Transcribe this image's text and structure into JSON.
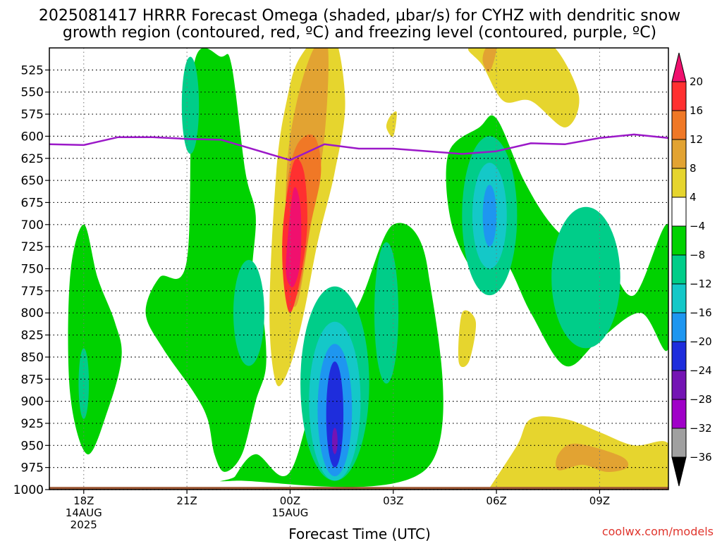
{
  "chart_data": {
    "type": "heatmap",
    "title_line1": "2025081417 HRRR Forecast Omega (shaded, µbar/s) for CYHZ with dendritic snow",
    "title_line2": "growth region (contoured, red, ºC) and freezing level (contoured, purple, ºC)",
    "xlabel": "Forecast Time (UTC)",
    "credit": "coolwx.com/models",
    "y_ticks": [
      525,
      550,
      575,
      600,
      625,
      650,
      675,
      700,
      725,
      750,
      775,
      800,
      825,
      850,
      875,
      900,
      925,
      950,
      975,
      1000
    ],
    "y_range_hpa": [
      500,
      1000
    ],
    "x_ticks": [
      {
        "hour": 18,
        "label": "18Z",
        "sub1": "14AUG",
        "sub2": "2025"
      },
      {
        "hour": 21,
        "label": "21Z",
        "sub1": "",
        "sub2": ""
      },
      {
        "hour": 24,
        "label": "00Z",
        "sub1": "15AUG",
        "sub2": ""
      },
      {
        "hour": 27,
        "label": "03Z",
        "sub1": "",
        "sub2": ""
      },
      {
        "hour": 30,
        "label": "06Z",
        "sub1": "",
        "sub2": ""
      },
      {
        "hour": 33,
        "label": "09Z",
        "sub1": "",
        "sub2": ""
      }
    ],
    "x_range_hours": [
      17,
      35
    ],
    "grid": true,
    "colorbar": {
      "labels": [
        "20",
        "16",
        "12",
        "8",
        "4",
        "−4",
        "−8",
        "−12",
        "−16",
        "−20",
        "−24",
        "−28",
        "−32",
        "−36"
      ],
      "colors": [
        "#f0106e",
        "#ff3030",
        "#f07826",
        "#e2a332",
        "#e6d52e",
        "#ffffff",
        "#00d200",
        "#00cd89",
        "#14c8c8",
        "#1e96f0",
        "#1e2ddc",
        "#7414b4",
        "#a000c8",
        "#a0a0a0",
        "#000000"
      ]
    },
    "terrain_color": "#9b5633",
    "freezing_level": {
      "color": "#9b18c8",
      "hours": [
        17,
        18,
        19,
        20,
        21,
        22,
        24,
        25,
        26,
        27,
        28,
        29,
        30,
        31,
        32,
        33,
        34,
        35
      ],
      "hpa": [
        609,
        610,
        601,
        601,
        603,
        604,
        627,
        609,
        614,
        614,
        617,
        620,
        617,
        608,
        609,
        602,
        598,
        602
      ]
    },
    "omega_regions": [
      {
        "level": 4,
        "color": "#e6d52e",
        "hours": [
          23.6,
          23.9,
          24.3,
          25.2,
          25.6,
          25.3,
          24.8,
          24.4,
          24.0,
          23.6,
          23.4
        ],
        "hpa": [
          640,
          560,
          510,
          480,
          560,
          640,
          720,
          800,
          860,
          880,
          800
        ]
      },
      {
        "level": 8,
        "color": "#e2a332",
        "hours": [
          23.9,
          24.2,
          24.7,
          25.1,
          25.0,
          24.6,
          24.2,
          23.9
        ],
        "hpa": [
          640,
          560,
          500,
          500,
          600,
          700,
          790,
          760
        ]
      },
      {
        "level": 12,
        "color": "#f07826",
        "hours": [
          23.9,
          24.2,
          24.7,
          24.9,
          24.6,
          24.2,
          23.9
        ],
        "hpa": [
          660,
          610,
          600,
          640,
          700,
          780,
          740
        ]
      },
      {
        "level": 16,
        "color": "#ff3030",
        "hours": [
          23.8,
          24.1,
          24.4,
          24.5,
          24.3,
          24.0,
          23.8
        ],
        "hpa": [
          700,
          630,
          640,
          700,
          760,
          800,
          760
        ]
      },
      {
        "level": 20,
        "color": "#f0106e",
        "hours": [
          23.9,
          24.1,
          24.3,
          24.3,
          24.1,
          23.9
        ],
        "hpa": [
          730,
          660,
          680,
          740,
          770,
          760
        ]
      },
      {
        "level": 4,
        "color": "#e6d52e",
        "hours": [
          29.2,
          30.3,
          31.0,
          31.7,
          32.4,
          32.0,
          31.0,
          30.2,
          29.6
        ],
        "hpa": [
          500,
          500,
          500,
          500,
          555,
          590,
          560,
          560,
          520
        ]
      },
      {
        "level": 8,
        "color": "#e2a332",
        "hours": [
          29.7,
          30.0,
          29.8,
          29.6
        ],
        "hpa": [
          500,
          500,
          527,
          515
        ]
      },
      {
        "level": 4,
        "color": "#e6d52e",
        "hours": [
          29.0,
          29.4,
          29.2,
          28.9
        ],
        "hpa": [
          800,
          810,
          855,
          855
        ]
      },
      {
        "level": 4,
        "color": "#e6d52e",
        "hours": [
          29.8,
          30.6,
          31.0,
          32.0,
          33.0,
          34.0,
          35.0,
          35.0,
          30.0,
          29.8
        ],
        "hpa": [
          998,
          950,
          920,
          920,
          935,
          950,
          948,
          1000,
          1000,
          998
        ]
      },
      {
        "level": 8,
        "color": "#e2a332",
        "hours": [
          31.8,
          32.3,
          33.6,
          33.8,
          33.2,
          32.5,
          31.8
        ],
        "hpa": [
          960,
          948,
          962,
          975,
          980,
          972,
          978
        ]
      },
      {
        "level": 4,
        "color": "#e6d52e",
        "hours": [
          26.9,
          27.1,
          27.0,
          26.8
        ],
        "hpa": [
          578,
          573,
          600,
          590
        ]
      },
      {
        "level": -4,
        "color": "#00d200",
        "hours": [
          21.2,
          22.0,
          22.3,
          22.7,
          23.0,
          22.9,
          23.2,
          23.3,
          23.0,
          22.6,
          22.1,
          21.8,
          21.6,
          21.2,
          20.3,
          19.8,
          20.2,
          21.0
        ],
        "hpa": [
          520,
          510,
          520,
          640,
          690,
          760,
          800,
          860,
          900,
          960,
          980,
          960,
          920,
          890,
          840,
          800,
          760,
          740
        ]
      },
      {
        "level": -4,
        "color": "#00d200",
        "hours": [
          17.6,
          18.0,
          18.4,
          18.9,
          19.1,
          18.7,
          18.1,
          17.6
        ],
        "hpa": [
          760,
          700,
          760,
          810,
          850,
          910,
          960,
          890
        ]
      },
      {
        "level": -4,
        "color": "#00d200",
        "hours": [
          22.4,
          23.0,
          24.0,
          25.0,
          26.0,
          27.0,
          28.0,
          28.0,
          22.4
        ],
        "hpa": [
          985,
          960,
          980,
          850,
          790,
          700,
          750,
          975,
          990
        ]
      },
      {
        "level": -4,
        "color": "#00d200",
        "hours": [
          28.6,
          29.5,
          30.0,
          30.8,
          31.6,
          32.5,
          33.2,
          34.0,
          35.0,
          35.0,
          34.2,
          33.0,
          32.0,
          31.0,
          30.2,
          29.5,
          28.7
        ],
        "hpa": [
          620,
          590,
          580,
          650,
          700,
          730,
          740,
          780,
          700,
          840,
          800,
          830,
          860,
          800,
          740,
          760,
          700
        ]
      }
    ],
    "omega_cores": [
      {
        "level": -8,
        "color": "#00cd89",
        "center_hour": 21.1,
        "center_hpa": 565,
        "half_w_hours": 0.25,
        "half_h_hpa": 55
      },
      {
        "level": -8,
        "color": "#00cd89",
        "center_hour": 22.8,
        "center_hpa": 800,
        "half_w_hours": 0.45,
        "half_h_hpa": 60
      },
      {
        "level": -8,
        "color": "#00cd89",
        "center_hour": 18.0,
        "center_hpa": 880,
        "half_w_hours": 0.15,
        "half_h_hpa": 40
      },
      {
        "level": -8,
        "color": "#00cd89",
        "center_hour": 32.6,
        "center_hpa": 760,
        "half_w_hours": 1.0,
        "half_h_hpa": 80
      },
      {
        "level": -8,
        "color": "#00cd89",
        "center_hour": 29.8,
        "center_hpa": 690,
        "half_w_hours": 0.8,
        "half_h_hpa": 90
      },
      {
        "level": -12,
        "color": "#14c8c8",
        "center_hour": 29.8,
        "center_hpa": 690,
        "half_w_hours": 0.5,
        "half_h_hpa": 60
      },
      {
        "level": -16,
        "color": "#1e96f0",
        "center_hour": 29.8,
        "center_hpa": 690,
        "half_w_hours": 0.2,
        "half_h_hpa": 35
      },
      {
        "level": -8,
        "color": "#00cd89",
        "center_hour": 25.3,
        "center_hpa": 880,
        "half_w_hours": 1.0,
        "half_h_hpa": 110
      },
      {
        "level": -12,
        "color": "#14c8c8",
        "center_hour": 25.3,
        "center_hpa": 900,
        "half_w_hours": 0.75,
        "half_h_hpa": 90
      },
      {
        "level": -16,
        "color": "#1e96f0",
        "center_hour": 25.3,
        "center_hpa": 910,
        "half_w_hours": 0.5,
        "half_h_hpa": 75
      },
      {
        "level": -20,
        "color": "#1e2ddc",
        "center_hour": 25.3,
        "center_hpa": 915,
        "half_w_hours": 0.25,
        "half_h_hpa": 60
      },
      {
        "level": -24,
        "color": "#7414b4",
        "center_hour": 25.3,
        "center_hpa": 945,
        "half_w_hours": 0.08,
        "half_h_hpa": 15
      },
      {
        "level": -8,
        "color": "#00cd89",
        "center_hour": 26.8,
        "center_hpa": 800,
        "half_w_hours": 0.35,
        "half_h_hpa": 80
      }
    ]
  }
}
